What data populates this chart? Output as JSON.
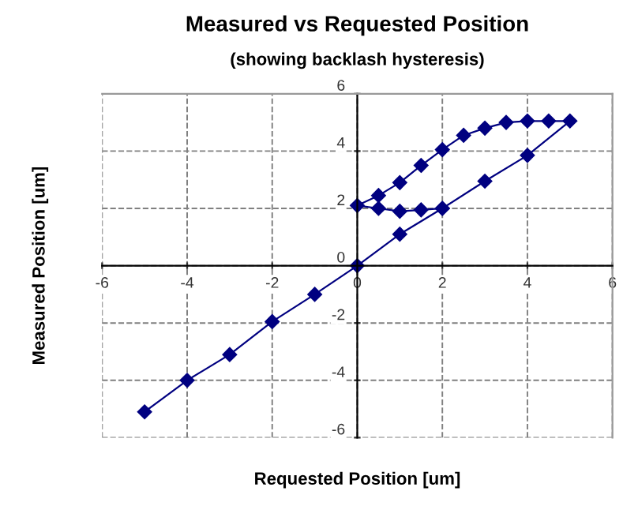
{
  "chart_data": {
    "type": "line",
    "title": "Measured vs Requested Position",
    "subtitle": "(showing backlash hysteresis)",
    "xlabel": "Requested Position [um]",
    "ylabel": "Measured Position [um]",
    "series": [
      {
        "color": "#000080",
        "x": [
          -5,
          -4,
          -3,
          -2,
          -1,
          0,
          1,
          2,
          3,
          4,
          5,
          4.5,
          4,
          3.5,
          3,
          2.5,
          2,
          1.5,
          1,
          0.5,
          0,
          0.5,
          1,
          1.5,
          2
        ],
        "values": [
          -5.1,
          -4,
          -3.1,
          -1.95,
          -1,
          0,
          1.1,
          2,
          2.95,
          3.85,
          5.05,
          5.05,
          5.05,
          5.0,
          4.8,
          4.55,
          4.05,
          3.5,
          2.9,
          2.45,
          2.1,
          2.0,
          1.9,
          1.95,
          2.0
        ]
      }
    ],
    "xlim": [
      -6,
      6
    ],
    "ylim": [
      -6,
      6
    ],
    "xticks": [
      -6,
      -4,
      -2,
      0,
      2,
      4,
      6
    ],
    "yticks": [
      -6,
      -4,
      -2,
      0,
      2,
      4,
      6
    ],
    "grid": true,
    "marker": "diamond",
    "line_style": "solid"
  }
}
